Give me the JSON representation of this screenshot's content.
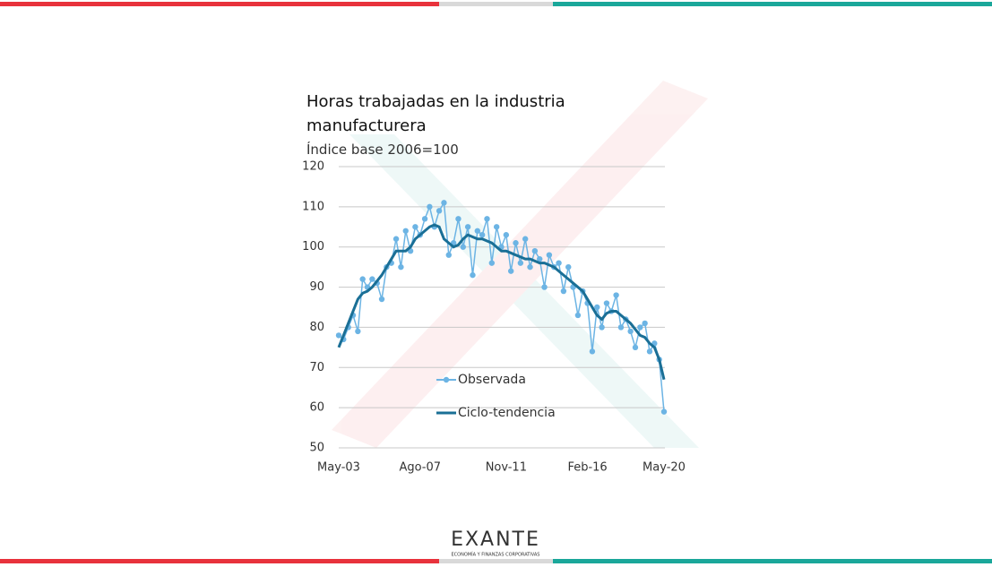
{
  "chart_data": {
    "type": "line",
    "title": "Horas trabajadas en la industria manufacturera",
    "subtitle": "Índice base 2006=100",
    "categories": [
      "May-03",
      null,
      null,
      null,
      null,
      null,
      null,
      null,
      null,
      null,
      null,
      null,
      null,
      null,
      null,
      null,
      null,
      "Ago-07",
      null,
      null,
      null,
      null,
      null,
      null,
      null,
      null,
      null,
      null,
      null,
      null,
      null,
      null,
      null,
      null,
      null,
      "Nov-11",
      null,
      null,
      null,
      null,
      null,
      null,
      null,
      null,
      null,
      null,
      null,
      null,
      null,
      null,
      null,
      null,
      "Feb-16",
      null,
      null,
      null,
      null,
      null,
      null,
      null,
      null,
      null,
      null,
      null,
      null,
      null,
      null,
      null,
      "May-20"
    ],
    "series": [
      {
        "name": "Observada",
        "color": "#6cb4e4",
        "markers": true,
        "values": [
          78,
          77,
          80,
          83,
          79,
          92,
          90,
          92,
          91,
          87,
          95,
          96,
          102,
          95,
          104,
          99,
          105,
          103,
          107,
          110,
          105,
          109,
          111,
          98,
          101,
          107,
          100,
          105,
          93,
          104,
          103,
          107,
          96,
          105,
          100,
          103,
          94,
          101,
          96,
          102,
          95,
          99,
          97,
          90,
          98,
          95,
          96,
          89,
          95,
          90,
          83,
          89,
          86,
          74,
          85,
          80,
          86,
          84,
          88,
          80,
          82,
          79,
          75,
          80,
          81,
          74,
          76,
          72,
          59
        ]
      },
      {
        "name": "Ciclo-tendencia",
        "color": "#1a6f96",
        "markers": false,
        "values": [
          75,
          78,
          81,
          84,
          87,
          88.5,
          89,
          90,
          91.5,
          93,
          95,
          97,
          99,
          99,
          99,
          100,
          102,
          103,
          104,
          105,
          105.5,
          105,
          102,
          101,
          100,
          100.5,
          102,
          103,
          102.5,
          102,
          102,
          101.5,
          101,
          100,
          99,
          99,
          98.5,
          98,
          97.5,
          97,
          97,
          96.5,
          96,
          96,
          95.5,
          95,
          94,
          93,
          92,
          91,
          90,
          89,
          87,
          85,
          83,
          82,
          83.5,
          84,
          84,
          83,
          82,
          81,
          79.5,
          78,
          77.5,
          76,
          75,
          72,
          67
        ]
      }
    ],
    "ylim": [
      50,
      120
    ],
    "yticks": [
      50,
      60,
      70,
      80,
      90,
      100,
      110,
      120
    ],
    "grid": true
  },
  "footer": {
    "logo": "EXANTE",
    "tagline": "ECONOMÍA Y FINANZAS CORPORATIVAS"
  }
}
